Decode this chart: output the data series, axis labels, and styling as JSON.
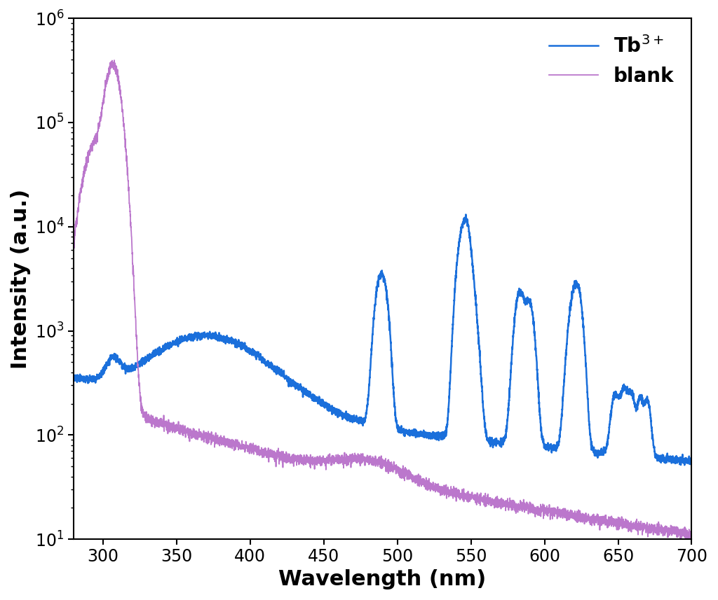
{
  "xlabel": "Wavelength (nm)",
  "ylabel": "Intensity (a.u.)",
  "xlim": [
    280,
    700
  ],
  "ylim": [
    10,
    1000000
  ],
  "tb_color": "#1a6fdb",
  "blank_color": "#bb77cc",
  "tb_linewidth": 1.8,
  "blank_linewidth": 1.3,
  "legend_tb": "Tb$^{3+}$",
  "legend_blank": "blank",
  "legend_fontsize": 20,
  "axis_label_fontsize": 22,
  "tick_fontsize": 17
}
